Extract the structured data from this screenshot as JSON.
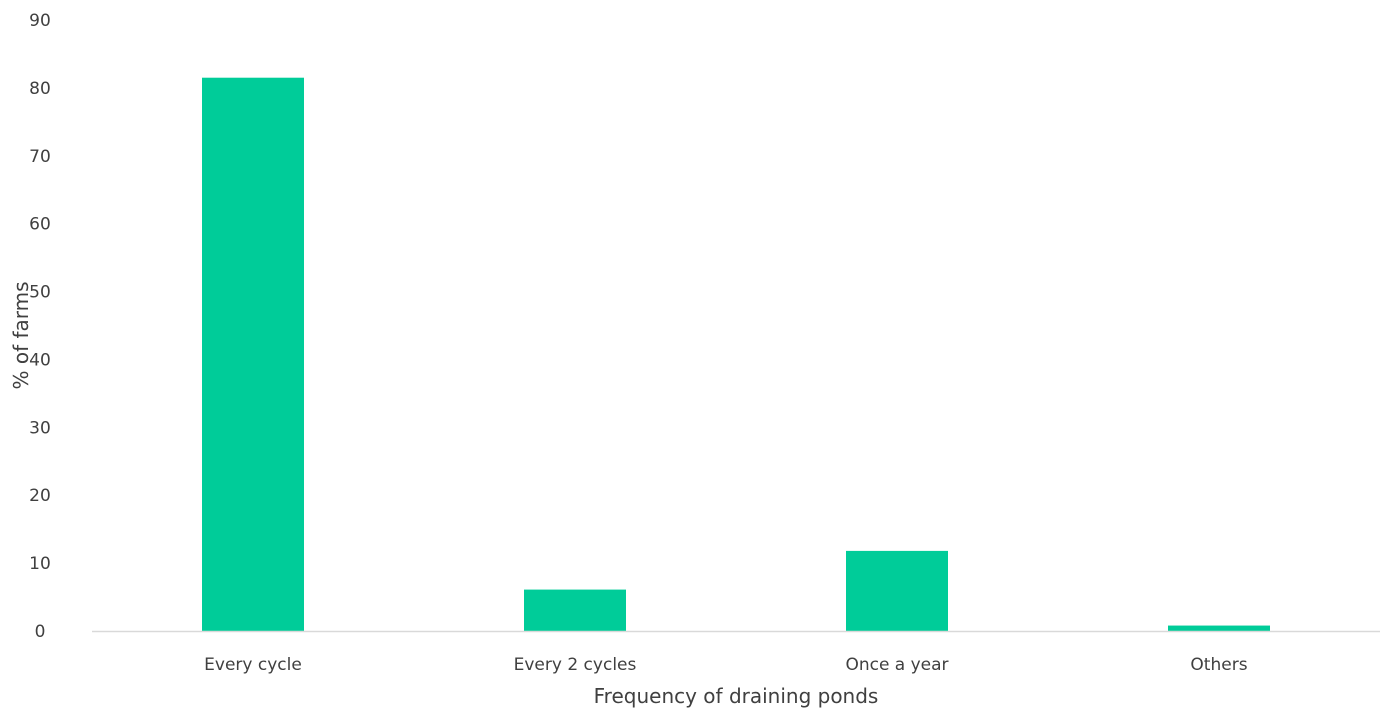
{
  "chart_data": {
    "type": "bar",
    "categories": [
      "Every cycle",
      "Every 2 cycles",
      "Once a year",
      "Others"
    ],
    "values": [
      81.5,
      6.1,
      11.8,
      0.8
    ],
    "title": "",
    "xlabel": "Frequency of draining ponds",
    "ylabel": "% of farms",
    "ylim": [
      0,
      90
    ],
    "yticks": [
      "0",
      "10",
      "20",
      "30",
      "40",
      "50",
      "60",
      "70",
      "80",
      "90"
    ],
    "grid": false,
    "bar_color": "#00CC99",
    "axis_color": "#D9D9D9"
  }
}
